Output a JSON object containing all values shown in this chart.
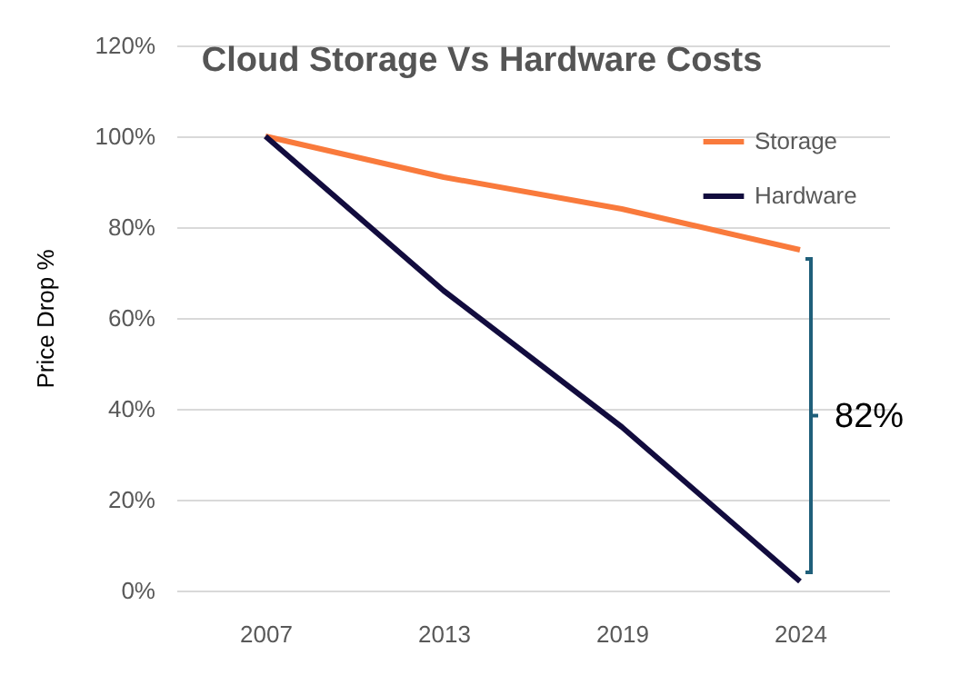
{
  "chart_data": {
    "type": "line",
    "title": "Cloud Storage Vs Hardware Costs",
    "ylabel": "Price Drop %",
    "categories": [
      "2007",
      "2013",
      "2019",
      "2024"
    ],
    "series": [
      {
        "name": "Storage",
        "color": "#f97a3c",
        "values": [
          100,
          91,
          84,
          75
        ]
      },
      {
        "name": "Hardware",
        "color": "#120c3e",
        "values": [
          100,
          66,
          36,
          2
        ]
      }
    ],
    "ylim": [
      0,
      120
    ],
    "yticks": [
      {
        "value": 0,
        "label": "0%"
      },
      {
        "value": 20,
        "label": "20%"
      },
      {
        "value": 40,
        "label": "40%"
      },
      {
        "value": 60,
        "label": "60%"
      },
      {
        "value": 80,
        "label": "80%"
      },
      {
        "value": 100,
        "label": "100%"
      },
      {
        "value": 120,
        "label": "120%"
      }
    ],
    "grid": "y",
    "legend": "top right",
    "marker": "none",
    "line_style": "solid",
    "annotations": [
      "82%"
    ]
  }
}
